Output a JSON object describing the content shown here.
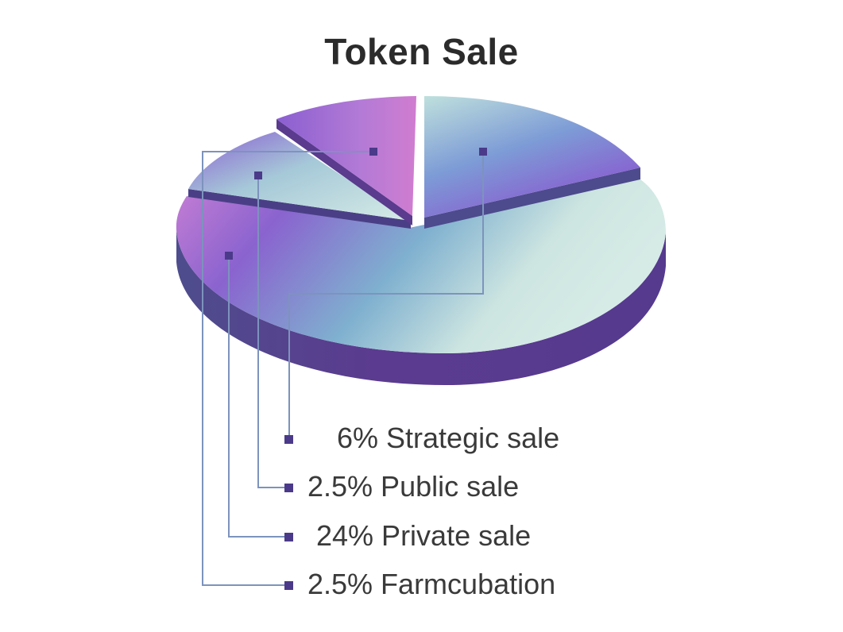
{
  "chart_data": {
    "type": "pie",
    "title": "Token Sale",
    "slices": [
      {
        "label": "6% Strategic sale",
        "value": 6
      },
      {
        "label": "2.5% Public sale",
        "value": 2.5
      },
      {
        "label": "24% Private sale",
        "value": 24
      },
      {
        "label": "2.5% Farmcubation",
        "value": 2.5
      }
    ],
    "legend_position": "bottom",
    "colors": {
      "purple": "#7b4fc4",
      "violet": "#b57ad6",
      "teal": "#7fb4cc",
      "mint": "#cfe6e2",
      "side_dark": "#4a3a86",
      "marker": "#4b3a8a",
      "line": "#6f8fb5"
    }
  }
}
